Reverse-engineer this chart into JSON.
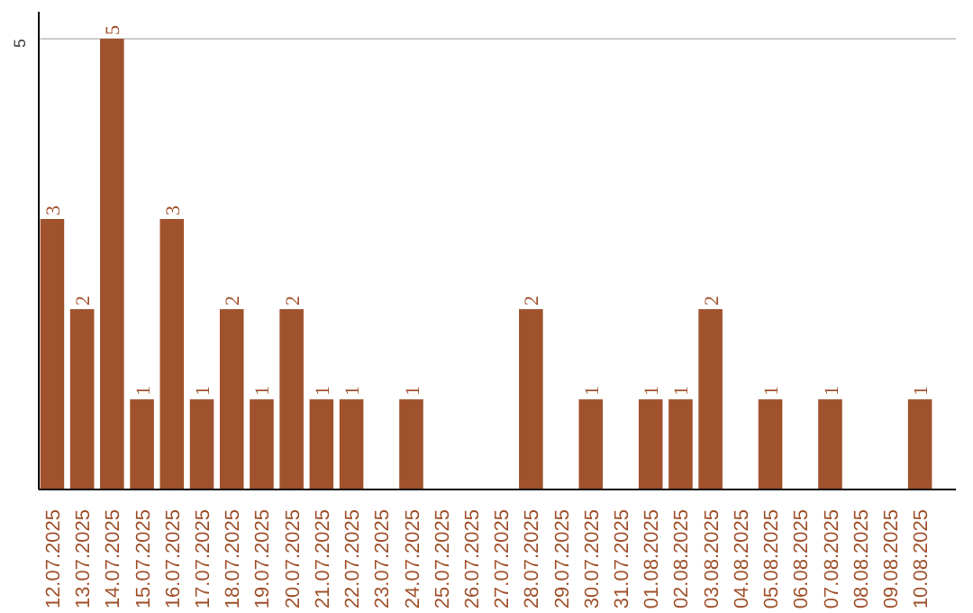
{
  "chart_data": {
    "type": "bar",
    "categories": [
      "12.07.2025",
      "13.07.2025",
      "14.07.2025",
      "15.07.2025",
      "16.07.2025",
      "17.07.2025",
      "18.07.2025",
      "19.07.2025",
      "20.07.2025",
      "21.07.2025",
      "22.07.2025",
      "23.07.2025",
      "24.07.2025",
      "25.07.2025",
      "26.07.2025",
      "27.07.2025",
      "28.07.2025",
      "29.07.2025",
      "30.07.2025",
      "31.07.2025",
      "01.08.2025",
      "02.08.2025",
      "03.08.2025",
      "04.08.2025",
      "05.08.2025",
      "06.08.2025",
      "07.08.2025",
      "08.08.2025",
      "09.08.2025",
      "10.08.2025"
    ],
    "values": [
      3,
      2,
      5,
      1,
      3,
      1,
      2,
      1,
      2,
      1,
      1,
      0,
      1,
      0,
      0,
      0,
      2,
      0,
      1,
      0,
      1,
      1,
      2,
      0,
      1,
      0,
      1,
      0,
      0,
      1
    ],
    "value_labels": [
      "3",
      "2",
      "5",
      "1",
      "3",
      "1",
      "2",
      "1",
      "2",
      "1",
      "1",
      null,
      "1",
      null,
      null,
      null,
      "2",
      null,
      "1",
      null,
      "1",
      "1",
      "2",
      null,
      "1",
      null,
      "1",
      null,
      null,
      "1"
    ],
    "color": "#a0522d",
    "ylim": [
      0,
      5.3
    ],
    "yticks": [
      5
    ],
    "grid": "y"
  }
}
